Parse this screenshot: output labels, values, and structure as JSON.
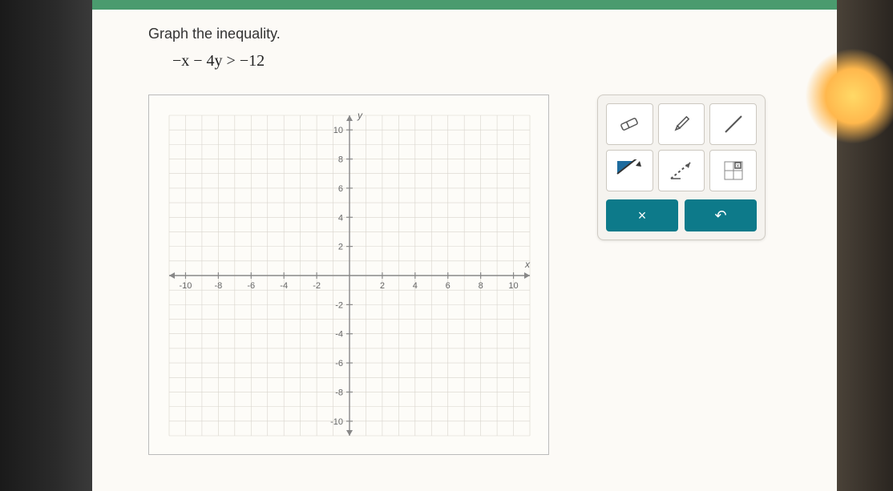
{
  "prompt": {
    "title": "Graph the inequality.",
    "equation": "−x − 4y > −12"
  },
  "graph": {
    "xlim": [
      -11,
      11
    ],
    "ylim": [
      -11,
      11
    ],
    "xtick_step": 2,
    "ytick_step": 2,
    "x_ticks": [
      -10,
      -8,
      -6,
      -4,
      -2,
      2,
      4,
      6,
      8,
      10
    ],
    "y_ticks": [
      -10,
      -8,
      -6,
      -4,
      -2,
      2,
      4,
      6,
      8,
      10
    ],
    "x_axis_label": "x",
    "y_axis_label": "y",
    "grid_color": "#d8d4cc",
    "axis_color": "#888888",
    "tick_label_color": "#666666",
    "tick_fontsize": 11,
    "background_color": "#fdfcf8",
    "border_color": "#bbbbbb"
  },
  "toolbox": {
    "tools": [
      {
        "name": "eraser",
        "label": "Eraser"
      },
      {
        "name": "pencil",
        "label": "Pencil"
      },
      {
        "name": "line",
        "label": "Line"
      },
      {
        "name": "shade",
        "label": "Shade Region"
      },
      {
        "name": "dashed-shade",
        "label": "Dashed Shade"
      },
      {
        "name": "point-grid",
        "label": "Point Grid"
      }
    ],
    "tool_bg": "#ffffff",
    "tool_border": "#ccc8c0",
    "panel_bg": "#f5f3ef",
    "actions": {
      "clear": {
        "label": "×",
        "bg": "#0d7a8a"
      },
      "undo": {
        "label": "↶",
        "bg": "#0d7a8a"
      }
    }
  },
  "colors": {
    "page_bg": "#fcfaf6",
    "top_bar": "#4a9b6e",
    "accent": "#0d7a8a",
    "shade_fill": "#1e6b9e"
  }
}
